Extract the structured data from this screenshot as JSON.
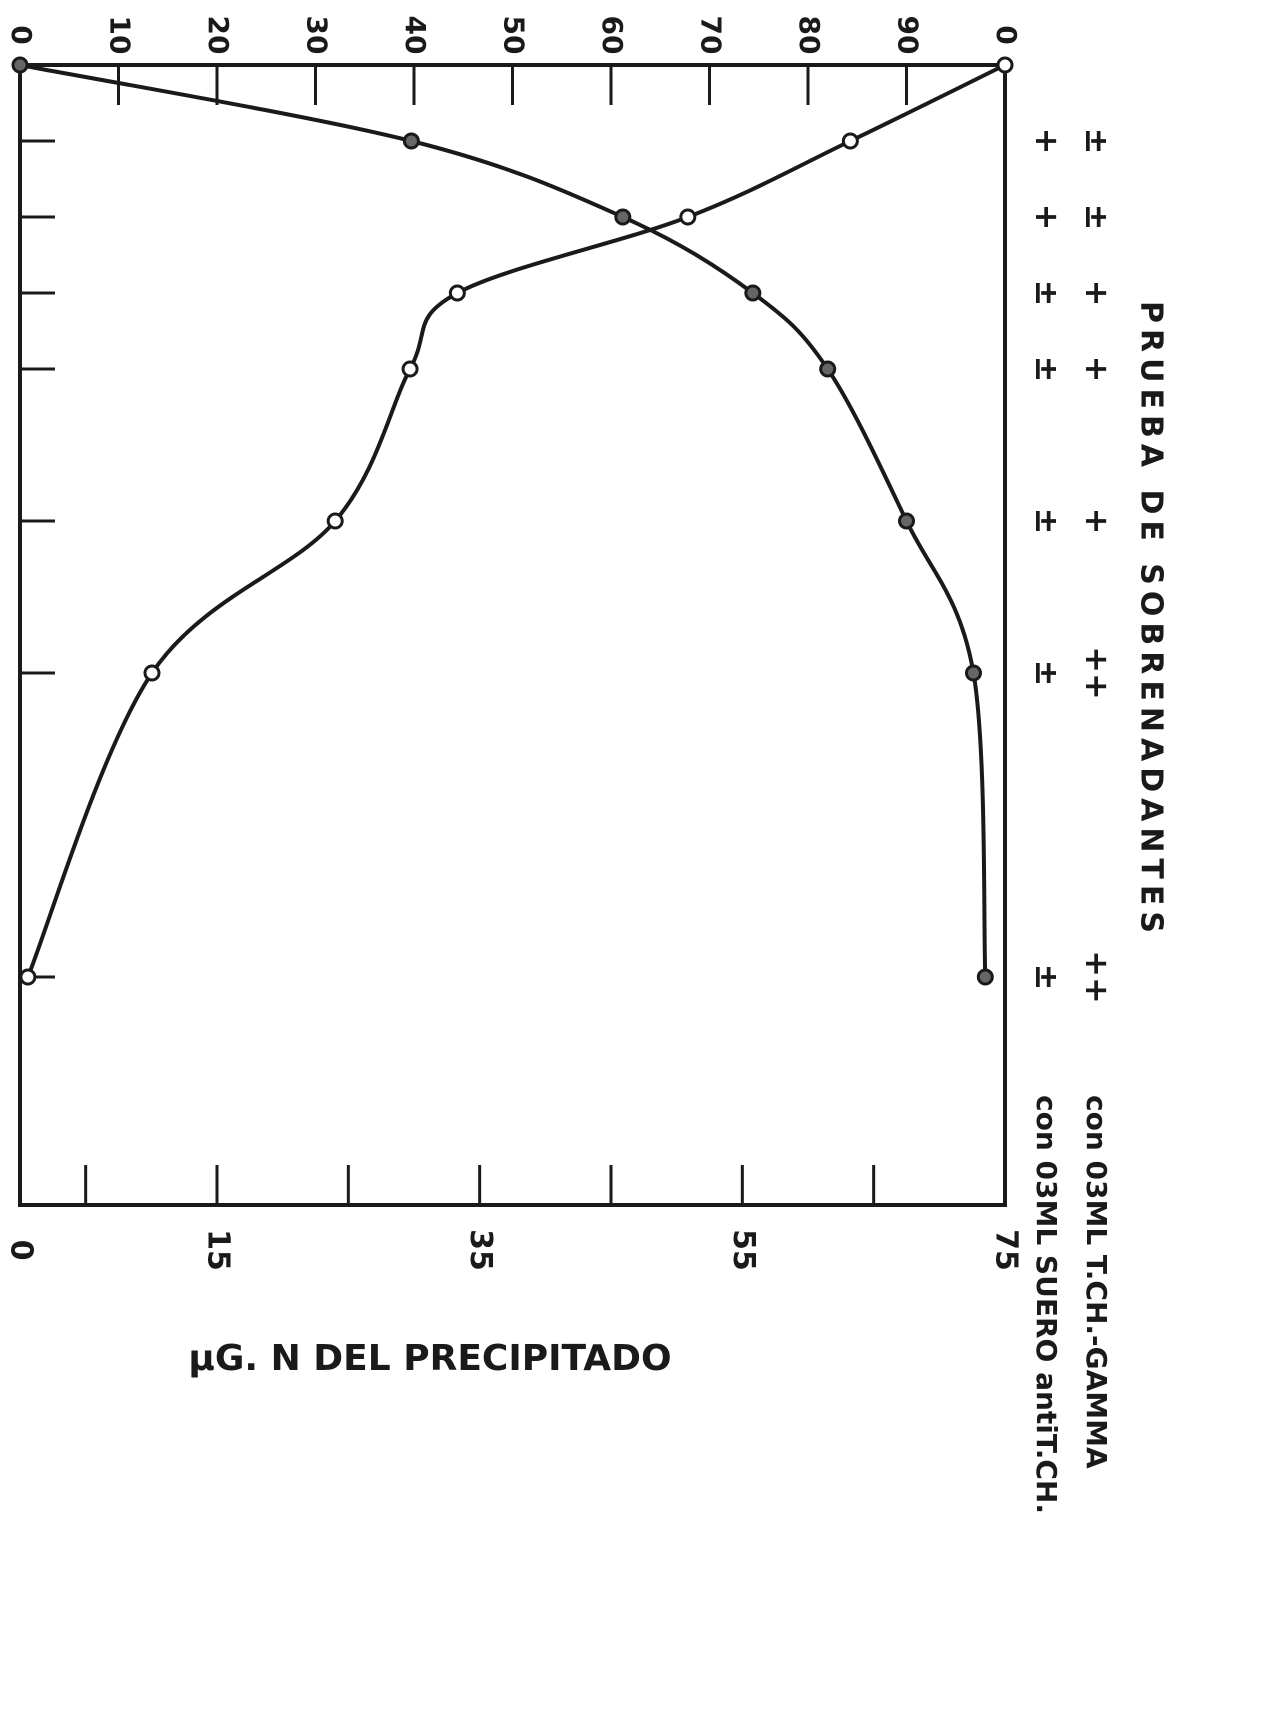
{
  "chart_data": {
    "type": "line",
    "title": "PRUEBA DE SOBRENADANTES",
    "x": [
      0,
      1,
      2,
      3,
      4,
      6,
      8,
      12
    ],
    "xlim": [
      0,
      15
    ],
    "ylabel": "µG. N DEL PRECIPITADO",
    "ylim": [
      0,
      75
    ],
    "yticks": [
      0,
      15,
      35,
      55,
      75
    ],
    "minor_yticks": [
      5,
      25,
      45,
      65
    ],
    "y2lim": [
      0,
      100
    ],
    "y2ticks": [
      0,
      10,
      20,
      30,
      40,
      50,
      60,
      70,
      80,
      90,
      {
        "value": 100,
        "label": "0"
      }
    ],
    "series": [
      {
        "marker": "filled",
        "color": "#1a1a1a",
        "values": [
          0,
          29.8,
          45.9,
          55.8,
          61.5,
          67.5,
          72.6,
          73.5
        ]
      },
      {
        "marker": "open",
        "color": "#1a1a1a",
        "axis": "y2",
        "values": [
          100,
          84.3,
          67.8,
          44.4,
          39.6,
          32,
          13.4,
          0.8
        ]
      }
    ],
    "annotation_rows": [
      {
        "label": "con 03ML T.CH.-GAMMA",
        "signs": [
          null,
          "±",
          "±",
          "+",
          "+",
          "+",
          "++",
          "++"
        ]
      },
      {
        "label": "con 03ML SUERO antiT.CH.",
        "signs": [
          null,
          "+",
          "+",
          "±",
          "±",
          "±",
          "±",
          "±"
        ]
      }
    ]
  }
}
